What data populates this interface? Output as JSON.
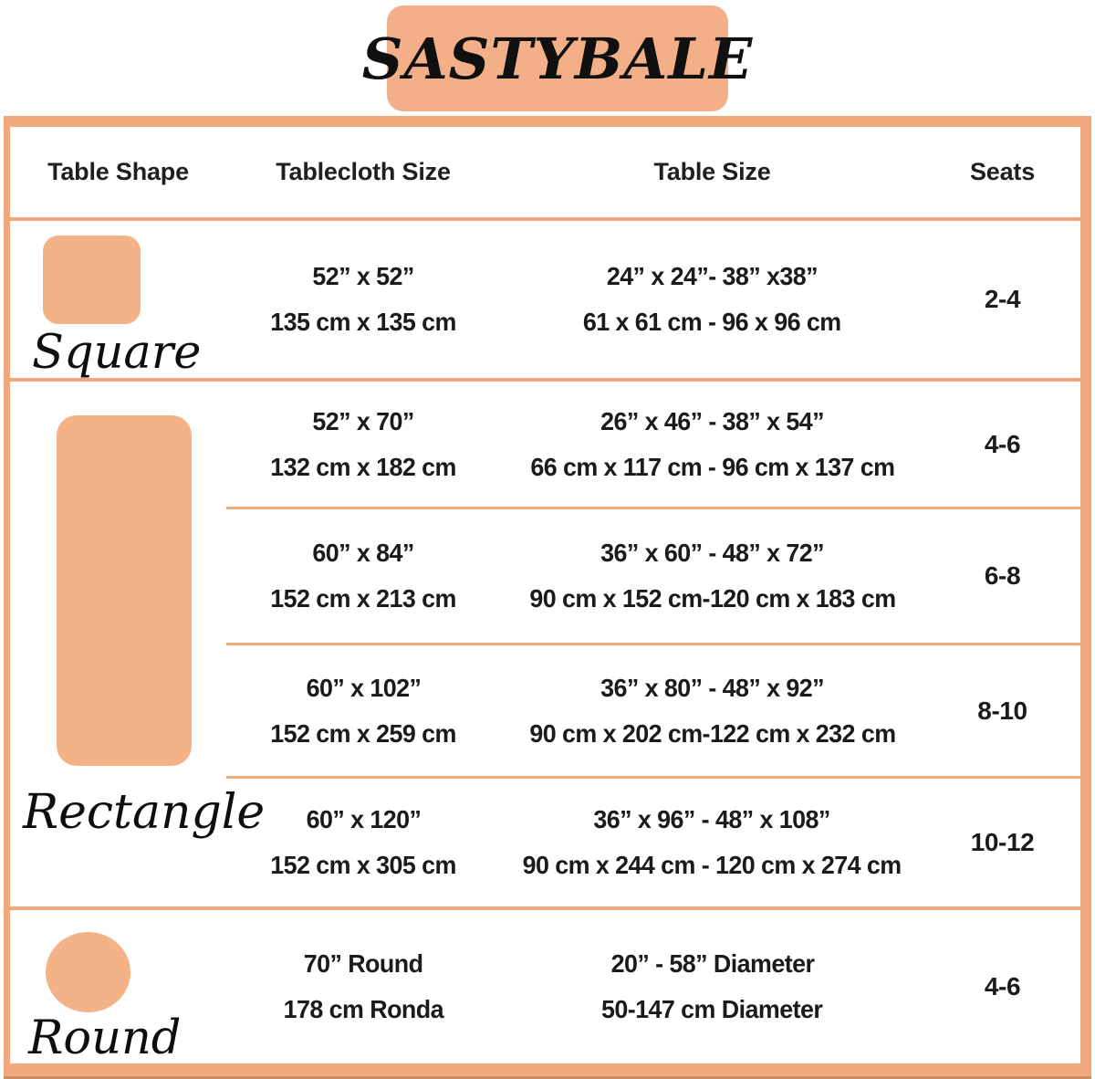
{
  "brand": {
    "name": "SASTYBALE"
  },
  "colors": {
    "accent_border": "#F0A87C",
    "shape_fill": "#F4B287",
    "title_plate": "#F3B088",
    "text": "#1B1B1B"
  },
  "table": {
    "headers": {
      "shape": "Table Shape",
      "tablecloth": "Tablecloth Size",
      "table": "Table Size",
      "seats": "Seats"
    },
    "shapes": {
      "square": "Square",
      "rectangle": "Rectangle",
      "round": "Round"
    },
    "rows": [
      {
        "tablecloth_in": "52” x 52”",
        "tablecloth_cm": "135 cm x 135 cm",
        "table_in": "24” x 24”- 38” x38”",
        "table_cm": "61 x 61 cm - 96 x 96 cm",
        "seats": "2-4"
      },
      {
        "tablecloth_in": "52” x 70”",
        "tablecloth_cm": "132 cm x 182 cm",
        "table_in": "26” x 46” - 38” x 54”",
        "table_cm": "66 cm x 117 cm - 96 cm x 137 cm",
        "seats": "4-6"
      },
      {
        "tablecloth_in": "60” x 84”",
        "tablecloth_cm": "152 cm x 213 cm",
        "table_in": "36” x 60” - 48” x 72”",
        "table_cm": "90 cm x 152 cm-120 cm x 183 cm",
        "seats": "6-8"
      },
      {
        "tablecloth_in": "60” x 102”",
        "tablecloth_cm": "152 cm x 259 cm",
        "table_in": "36” x 80” - 48” x 92”",
        "table_cm": "90 cm x 202 cm-122 cm x 232 cm",
        "seats": "8-10"
      },
      {
        "tablecloth_in": "60” x 120”",
        "tablecloth_cm": "152 cm x 305 cm",
        "table_in": "36” x 96” - 48” x 108”",
        "table_cm": "90 cm x 244 cm - 120 cm x 274 cm",
        "seats": "10-12"
      },
      {
        "tablecloth_in": "70” Round",
        "tablecloth_cm": "178 cm Ronda",
        "table_in": "20” - 58” Diameter",
        "table_cm": "50-147 cm Diameter",
        "seats": "4-6"
      }
    ]
  },
  "chart_data": {
    "type": "table",
    "title": "SASTYBALE",
    "columns": [
      "Table Shape",
      "Tablecloth Size",
      "Table Size",
      "Seats"
    ],
    "rows": [
      [
        "Square",
        "52” x 52” / 135 cm x 135 cm",
        "24” x 24”- 38” x38” / 61 x 61 cm - 96 x 96 cm",
        "2-4"
      ],
      [
        "Rectangle",
        "52” x 70” / 132 cm x 182 cm",
        "26” x 46” - 38” x 54” / 66 cm x 117 cm - 96 cm x 137 cm",
        "4-6"
      ],
      [
        "Rectangle",
        "60” x 84” / 152 cm x 213 cm",
        "36” x 60” - 48” x 72” / 90 cm x 152 cm-120 cm x 183 cm",
        "6-8"
      ],
      [
        "Rectangle",
        "60” x 102” / 152 cm x 259 cm",
        "36” x 80” - 48” x 92” / 90 cm x 202 cm-122 cm x 232 cm",
        "8-10"
      ],
      [
        "Rectangle",
        "60” x 120” / 152 cm x 305 cm",
        "36” x 96” - 48” x 108” / 90 cm x 244 cm - 120 cm x 274 cm",
        "10-12"
      ],
      [
        "Round",
        "70” Round / 178 cm Ronda",
        "20” - 58” Diameter / 50-147 cm Diameter",
        "4-6"
      ]
    ]
  }
}
